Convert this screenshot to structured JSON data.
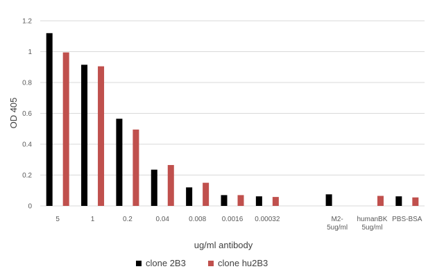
{
  "chart_data": {
    "type": "bar",
    "title": "",
    "xlabel": "ug/ml antibody",
    "ylabel": "OD 405",
    "ylim": [
      0,
      1.2
    ],
    "yticks": [
      "0",
      "0.2",
      "0.4",
      "0.6",
      "0.8",
      "1",
      "1.2"
    ],
    "grid": true,
    "legend_position": "bottom",
    "categories": [
      [
        "5"
      ],
      [
        "1"
      ],
      [
        "0.2"
      ],
      [
        "0.04"
      ],
      [
        "0.008"
      ],
      [
        "0.0016"
      ],
      [
        "0.00032"
      ],
      [
        ""
      ],
      [
        "M2-",
        "5ug/ml"
      ],
      [
        "humanBK",
        "5ug/ml"
      ],
      [
        "PBS-BSA"
      ]
    ],
    "series": [
      {
        "name": "clone 2B3",
        "color": "#000000",
        "values": [
          1.12,
          0.915,
          0.565,
          0.235,
          0.12,
          0.07,
          0.062,
          null,
          0.075,
          null,
          0.062
        ]
      },
      {
        "name": "clone hu2B3",
        "color": "#c0504d",
        "values": [
          0.995,
          0.905,
          0.495,
          0.265,
          0.15,
          0.07,
          0.058,
          null,
          null,
          0.065,
          0.055
        ]
      }
    ]
  }
}
